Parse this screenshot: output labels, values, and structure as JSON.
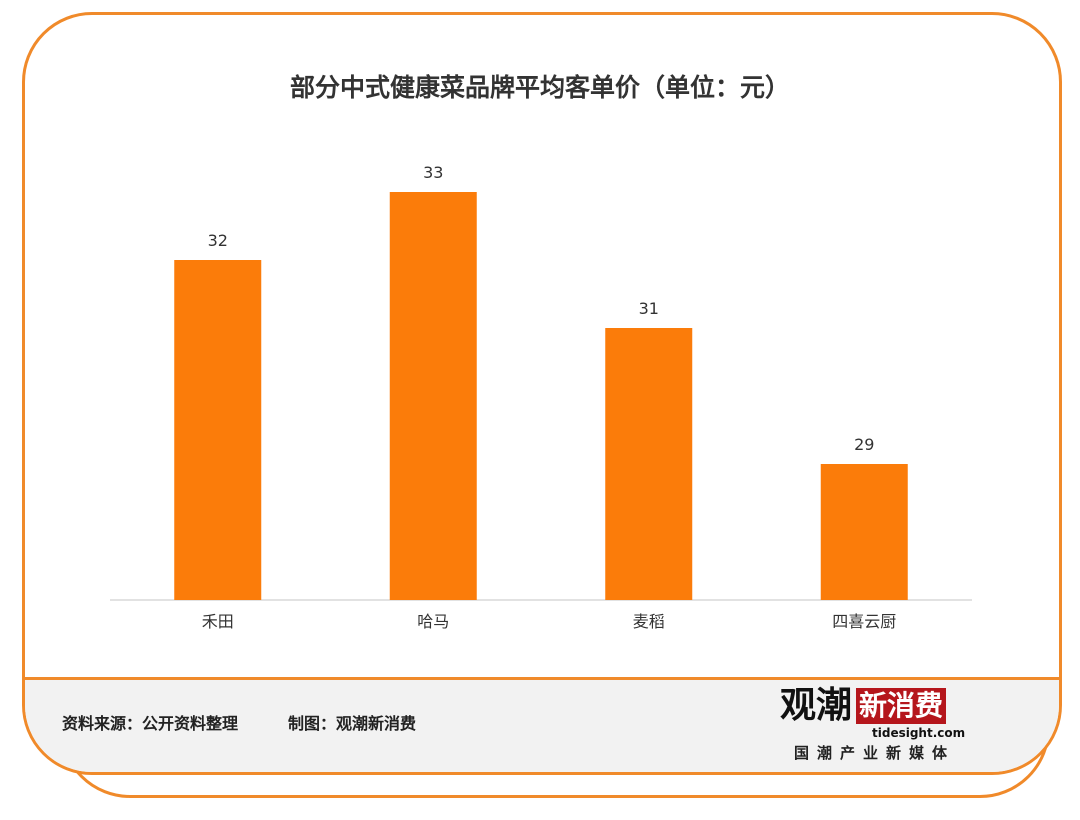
{
  "chart_data": {
    "type": "bar",
    "title": "部分中式健康菜品牌平均客单价（单位：元）",
    "categories": [
      "禾田",
      "哈马",
      "麦稻",
      "四喜云厨"
    ],
    "values": [
      32,
      33,
      31,
      29
    ],
    "data_labels": [
      "32",
      "33",
      "31",
      "29"
    ],
    "ylim": [
      27,
      34
    ],
    "grid": false,
    "bar_color": "#fb7c0a",
    "xlabel": "",
    "ylabel": ""
  },
  "footer": {
    "source": "资料来源：公开资料整理",
    "maker": "制图：观潮新消费"
  },
  "logo": {
    "main_a": "观潮",
    "main_b": "新消费",
    "url": "tidesight.com",
    "tagline": "国潮产业新媒体"
  },
  "colors": {
    "frame": "#f08a2a",
    "footer_bg": "#f2f2f2",
    "logo_red": "#b5161c"
  }
}
